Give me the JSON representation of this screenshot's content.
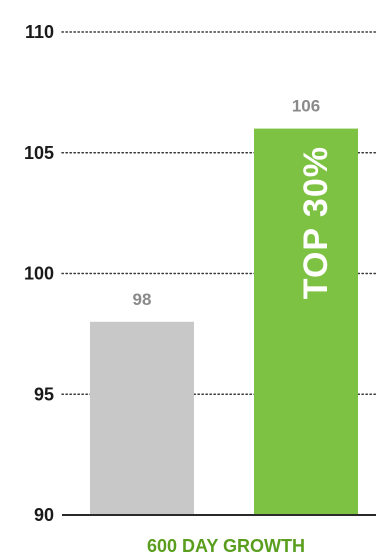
{
  "chart_data": {
    "type": "bar",
    "xlabel": "600 DAY GROWTH",
    "ylim": [
      90,
      110
    ],
    "yticks": [
      110,
      105,
      100,
      95,
      90
    ],
    "grid": "dotted",
    "bars": [
      {
        "value": 98,
        "label": "98",
        "color": "#c8c8c8",
        "inner_label": ""
      },
      {
        "value": 106,
        "label": "106",
        "color": "#7dc242",
        "inner_label": "TOP 30%"
      }
    ]
  }
}
